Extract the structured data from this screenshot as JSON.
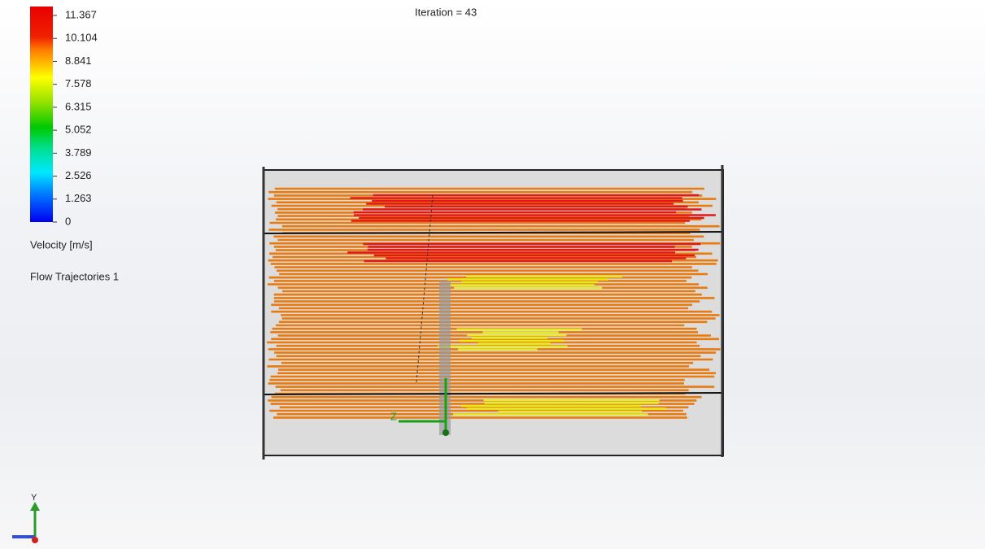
{
  "status": {
    "iteration": "Iteration = 43"
  },
  "legend": {
    "ticks": [
      "11.367",
      "10.104",
      "8.841",
      "7.578",
      "6.315",
      "5.052",
      "3.789",
      "2.526",
      "1.263",
      "0"
    ],
    "quantity": "Velocity [m/s]",
    "plot_name": "Flow Trajectories 1"
  },
  "axes": {
    "model_axis": "Z",
    "view_axis": "Y"
  }
}
